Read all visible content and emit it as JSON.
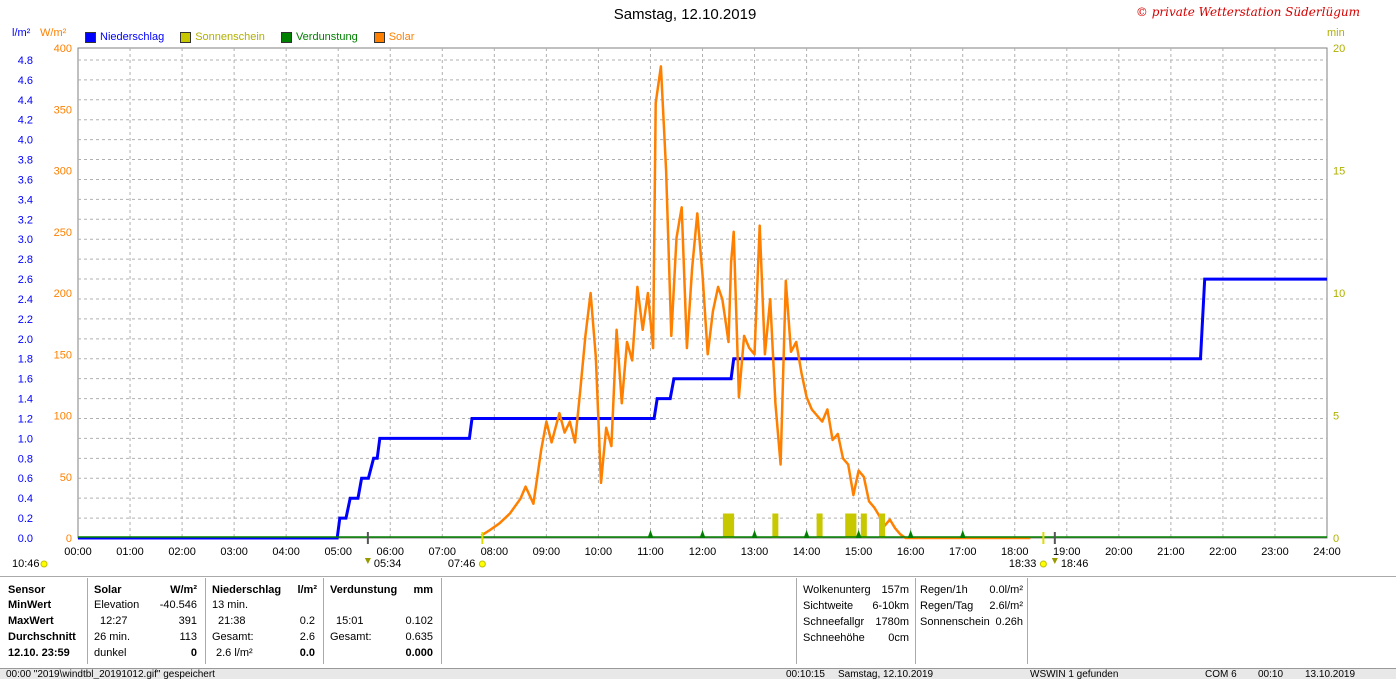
{
  "title": "Samstag, 12.10.2019",
  "copyright": "© private Wetterstation Süderlügum",
  "units": {
    "left1": "l/m²",
    "left2": "W/m²",
    "right": "min"
  },
  "legend": [
    {
      "label": "Niederschlag",
      "color": "#0000ff",
      "text_color": "#0000ff"
    },
    {
      "label": "Sonnenschein",
      "color": "#c8c800",
      "text_color": "#b0b000"
    },
    {
      "label": "Verdunstung",
      "color": "#008000",
      "text_color": "#008000"
    },
    {
      "label": "Solar",
      "color": "#ff8000",
      "text_color": "#ff8000"
    }
  ],
  "chart_data": {
    "type": "line",
    "title": "Samstag, 12.10.2019",
    "x_unit": "hours",
    "xlim": [
      0,
      24
    ],
    "x_ticks": [
      "00:00",
      "01:00",
      "02:00",
      "03:00",
      "04:00",
      "05:00",
      "06:00",
      "07:00",
      "08:00",
      "09:00",
      "10:00",
      "11:00",
      "12:00",
      "13:00",
      "14:00",
      "15:00",
      "16:00",
      "17:00",
      "18:00",
      "19:00",
      "20:00",
      "21:00",
      "22:00",
      "23:00",
      "24:00"
    ],
    "y_precip_ticks": [
      "0.0",
      "0.2",
      "0.4",
      "0.6",
      "0.8",
      "1.0",
      "1.2",
      "1.4",
      "1.6",
      "1.8",
      "2.0",
      "2.2",
      "2.4",
      "2.6",
      "2.8",
      "3.0",
      "3.2",
      "3.4",
      "3.6",
      "3.8",
      "4.0",
      "4.2",
      "4.4",
      "4.6",
      "4.8"
    ],
    "y_solar_ticks": [
      "0",
      "50",
      "100",
      "150",
      "200",
      "250",
      "300",
      "350",
      "400"
    ],
    "y_min_ticks": [
      "0",
      "5",
      "10",
      "15",
      "20"
    ],
    "ylim_solar": [
      0,
      400
    ],
    "ylim_precip": [
      0,
      4.92
    ],
    "ylim_minutes": [
      0,
      20
    ],
    "series": [
      {
        "name": "Niederschlag",
        "color": "#0000ff",
        "axis": "precip",
        "x": [
          0,
          4.98,
          5.03,
          5.15,
          5.23,
          5.38,
          5.45,
          5.58,
          5.68,
          5.75,
          5.8,
          7.52,
          7.57,
          11.07,
          11.13,
          11.38,
          11.45,
          12.55,
          12.6,
          21.57,
          21.65,
          24.0
        ],
        "values": [
          0,
          0,
          0.2,
          0.2,
          0.4,
          0.4,
          0.6,
          0.6,
          0.8,
          0.8,
          1.0,
          1.0,
          1.2,
          1.2,
          1.4,
          1.4,
          1.6,
          1.6,
          1.8,
          1.8,
          2.6,
          2.6
        ]
      },
      {
        "name": "Solar",
        "color": "#ff8000",
        "axis": "solar",
        "x": [
          7.75,
          7.9,
          8.1,
          8.3,
          8.5,
          8.6,
          8.75,
          8.9,
          9.0,
          9.1,
          9.25,
          9.35,
          9.45,
          9.55,
          9.65,
          9.75,
          9.85,
          9.95,
          10.05,
          10.15,
          10.25,
          10.35,
          10.45,
          10.55,
          10.65,
          10.75,
          10.85,
          10.95,
          11.05,
          11.1,
          11.2,
          11.3,
          11.4,
          11.5,
          11.6,
          11.7,
          11.8,
          11.9,
          12.0,
          12.1,
          12.2,
          12.3,
          12.38,
          12.45,
          12.5,
          12.55,
          12.6,
          12.7,
          12.8,
          12.9,
          13.0,
          13.1,
          13.2,
          13.3,
          13.4,
          13.5,
          13.6,
          13.7,
          13.8,
          13.9,
          14.0,
          14.1,
          14.2,
          14.3,
          14.4,
          14.5,
          14.6,
          14.7,
          14.8,
          14.9,
          15.0,
          15.1,
          15.2,
          15.3,
          15.4,
          15.5,
          15.6,
          15.7,
          15.8,
          15.9,
          16.0,
          16.1,
          16.2,
          16.3,
          16.4,
          16.5,
          16.6,
          16.7,
          16.8,
          16.9,
          17.0,
          17.1,
          17.2,
          17.3,
          17.4,
          17.5,
          17.6,
          17.7,
          17.8,
          17.9,
          18.0,
          18.1,
          18.2,
          18.3
        ],
        "values": [
          2,
          6,
          12,
          20,
          32,
          42,
          28,
          72,
          95,
          78,
          102,
          86,
          95,
          78,
          120,
          165,
          200,
          148,
          45,
          90,
          75,
          170,
          110,
          160,
          145,
          205,
          170,
          200,
          155,
          355,
          385,
          300,
          165,
          245,
          270,
          155,
          220,
          265,
          215,
          150,
          185,
          205,
          195,
          175,
          160,
          225,
          250,
          115,
          165,
          155,
          150,
          255,
          150,
          195,
          110,
          60,
          210,
          152,
          160,
          135,
          115,
          105,
          100,
          95,
          105,
          80,
          85,
          65,
          60,
          35,
          55,
          50,
          30,
          25,
          18,
          10,
          15,
          8,
          3,
          0,
          0,
          0,
          0,
          0,
          0,
          0,
          0,
          0,
          0,
          0,
          0,
          0,
          0,
          0,
          0,
          0,
          0,
          0,
          0,
          0,
          0,
          0,
          0,
          0
        ]
      },
      {
        "name": "Sonnenschein",
        "color": "#c8c800",
        "axis": "minutes",
        "bars": [
          {
            "x": 12.45,
            "value": 1.0
          },
          {
            "x": 12.55,
            "value": 1.0
          },
          {
            "x": 13.4,
            "value": 1.0
          },
          {
            "x": 14.25,
            "value": 1.0
          },
          {
            "x": 14.8,
            "value": 1.0
          },
          {
            "x": 14.9,
            "value": 1.0
          },
          {
            "x": 15.1,
            "value": 1.0
          },
          {
            "x": 15.45,
            "value": 1.0
          }
        ]
      },
      {
        "name": "Verdunstung",
        "color": "#008000",
        "axis": "precip",
        "x": [
          11.0,
          12.0,
          13.0,
          14.0,
          15.0,
          16.0,
          17.0
        ],
        "values": [
          0.02,
          0.02,
          0.02,
          0.02,
          0.02,
          0.02,
          0.02
        ]
      }
    ],
    "sun_events": [
      {
        "label": "07:46",
        "x": 7.77
      },
      {
        "label": "18:33",
        "x": 18.55
      }
    ],
    "twilight_events": [
      {
        "label": "05:34",
        "x": 5.57
      },
      {
        "label": "18:46",
        "x": 18.77
      }
    ],
    "left_corner_label": "10:46"
  },
  "stats": {
    "sensor": {
      "h": "Sensor",
      "min": "MinWert",
      "max": "MaxWert",
      "avg": "Durchschnitt",
      "date": "12.10. 23:59"
    },
    "solar": {
      "h": "Solar",
      "u": "W/m²",
      "r1a": "Elevation",
      "r1b": "-40.546",
      "r2a": "12:27",
      "r2b": "391",
      "r3a": "26 min.",
      "r3b": "113",
      "r4a": "dunkel",
      "r4b": "0"
    },
    "precip": {
      "h": "Niederschlag",
      "u": "l/m²",
      "r1a": "13 min.",
      "r1b": "",
      "r2a": "21:38",
      "r2b": "0.2",
      "r3a": "Gesamt:",
      "r3b": "2.6",
      "r4a": "2.6 l/m²",
      "r4b": "0.0"
    },
    "evap": {
      "h": "Verdunstung",
      "u": "mm",
      "r2a": "15:01",
      "r2b": "0.102",
      "r3a": "Gesamt:",
      "r3b": "0.635",
      "r4b": "0.000"
    },
    "weather": [
      {
        "k": "Wolkenunterg",
        "v": "157m"
      },
      {
        "k": "Sichtweite",
        "v": "6-10km"
      },
      {
        "k": "Schneefallgr",
        "v": "1780m"
      },
      {
        "k": "Schneehöhe",
        "v": "0cm"
      }
    ],
    "rain": [
      {
        "k": "Regen/1h",
        "v": "0.0l/m²"
      },
      {
        "k": "Regen/Tag",
        "v": "2.6l/m²"
      },
      {
        "k": "Sonnenschein",
        "v": "0.26h"
      }
    ]
  },
  "statusbar": {
    "left": "00:00  \"2019\\windtbl_20191012.gif\" gespeichert",
    "time": "00:10:15",
    "date": "Samstag, 12.10.2019",
    "msg": "WSWIN 1 gefunden",
    "com": "COM 6",
    "t2": "00:10",
    "d2": "13.10.2019"
  }
}
